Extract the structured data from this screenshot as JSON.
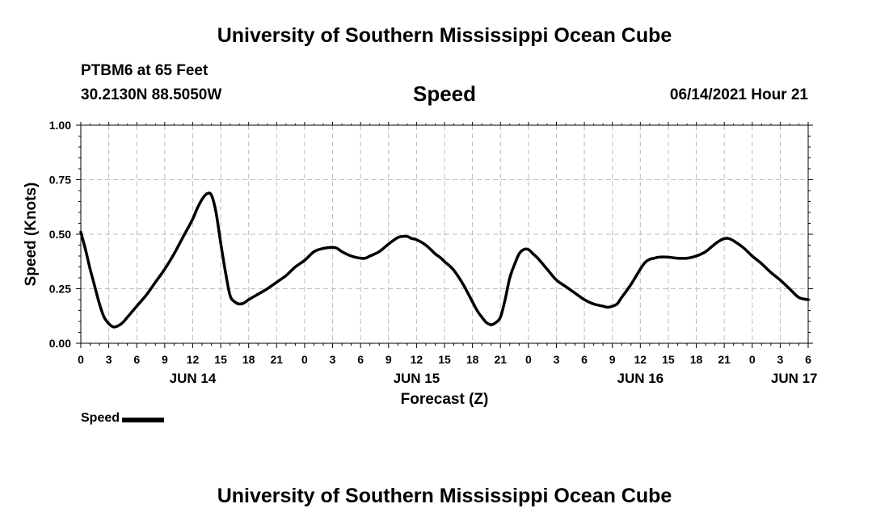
{
  "header": {
    "title": "University of Southern Mississippi Ocean Cube",
    "station": "PTBM6 at 65 Feet",
    "coords": "30.2130N  88.5050W",
    "chart_title": "Speed",
    "datestamp": "06/14/2021 Hour 21"
  },
  "footer": {
    "title": "University of Southern Mississippi Ocean Cube"
  },
  "legend": {
    "label": "Speed"
  },
  "colors": {
    "line": "#000000",
    "grid": "#bbbbbb",
    "axis": "#000000"
  },
  "chart_data": {
    "type": "line",
    "title": "Speed",
    "xlabel": "Forecast (Z)",
    "ylabel": "Speed (Knots)",
    "xunit": "hours from JUN 14 00Z",
    "xlim": [
      0,
      78
    ],
    "ylim": [
      0,
      1
    ],
    "grid": true,
    "yticks": [
      0,
      0.25,
      0.5,
      0.75,
      1.0
    ],
    "ytick_labels": [
      "0.00",
      "0.25",
      "0.50",
      "0.75",
      "1.00"
    ],
    "xticks": [
      0,
      3,
      6,
      9,
      12,
      15,
      18,
      21,
      24,
      27,
      30,
      33,
      36,
      39,
      42,
      45,
      48,
      51,
      54,
      57,
      60,
      63,
      66,
      69,
      72,
      75,
      78
    ],
    "xtick_labels": [
      "0",
      "3",
      "6",
      "9",
      "12",
      "15",
      "18",
      "21",
      "0",
      "3",
      "6",
      "9",
      "12",
      "15",
      "18",
      "21",
      "0",
      "3",
      "6",
      "9",
      "12",
      "15",
      "18",
      "21",
      "0",
      "3",
      "6"
    ],
    "day_labels": [
      {
        "x": 12,
        "label": "JUN 14"
      },
      {
        "x": 36,
        "label": "JUN 15"
      },
      {
        "x": 60,
        "label": "JUN 16"
      },
      {
        "x": 76.5,
        "label": "JUN 17"
      }
    ],
    "series": [
      {
        "name": "Speed",
        "x": [
          0,
          0.5,
          1,
          1.5,
          2,
          2.5,
          3,
          3.5,
          4,
          4.5,
          5,
          6,
          7,
          8,
          9,
          10,
          11,
          12,
          12.5,
          13,
          13.5,
          14,
          14.5,
          15,
          15.5,
          16,
          16.5,
          17,
          17.5,
          18,
          19,
          20,
          21,
          22,
          23,
          24,
          25,
          26,
          27,
          27.5,
          28,
          29,
          30,
          30.5,
          31,
          32,
          33,
          34,
          34.5,
          35,
          35.5,
          36,
          37,
          38,
          38.5,
          39,
          40,
          41,
          42,
          42.5,
          43,
          43.5,
          44,
          44.5,
          45,
          45.5,
          46,
          46.5,
          47,
          47.5,
          48,
          48.5,
          49,
          50,
          51,
          52,
          53,
          54,
          55,
          56,
          56.5,
          57,
          57.5,
          58,
          59,
          60,
          60.5,
          61,
          61.5,
          62,
          63,
          64,
          65,
          66,
          67,
          68,
          68.5,
          69,
          69.5,
          70,
          71,
          72,
          73,
          74,
          75,
          76,
          77,
          78
        ],
        "values": [
          0.51,
          0.43,
          0.34,
          0.26,
          0.18,
          0.12,
          0.09,
          0.075,
          0.08,
          0.095,
          0.12,
          0.17,
          0.22,
          0.28,
          0.34,
          0.41,
          0.49,
          0.57,
          0.62,
          0.66,
          0.685,
          0.68,
          0.6,
          0.46,
          0.33,
          0.22,
          0.19,
          0.18,
          0.185,
          0.2,
          0.225,
          0.25,
          0.28,
          0.31,
          0.35,
          0.38,
          0.42,
          0.435,
          0.44,
          0.435,
          0.42,
          0.4,
          0.39,
          0.39,
          0.4,
          0.42,
          0.455,
          0.485,
          0.49,
          0.49,
          0.48,
          0.475,
          0.45,
          0.41,
          0.395,
          0.375,
          0.335,
          0.27,
          0.19,
          0.15,
          0.12,
          0.095,
          0.085,
          0.095,
          0.12,
          0.2,
          0.3,
          0.36,
          0.41,
          0.43,
          0.43,
          0.41,
          0.39,
          0.34,
          0.29,
          0.26,
          0.23,
          0.2,
          0.18,
          0.17,
          0.165,
          0.17,
          0.18,
          0.21,
          0.27,
          0.34,
          0.37,
          0.385,
          0.39,
          0.395,
          0.395,
          0.39,
          0.39,
          0.4,
          0.42,
          0.455,
          0.47,
          0.48,
          0.48,
          0.47,
          0.44,
          0.4,
          0.365,
          0.325,
          0.29,
          0.25,
          0.21,
          0.2
        ]
      }
    ]
  }
}
